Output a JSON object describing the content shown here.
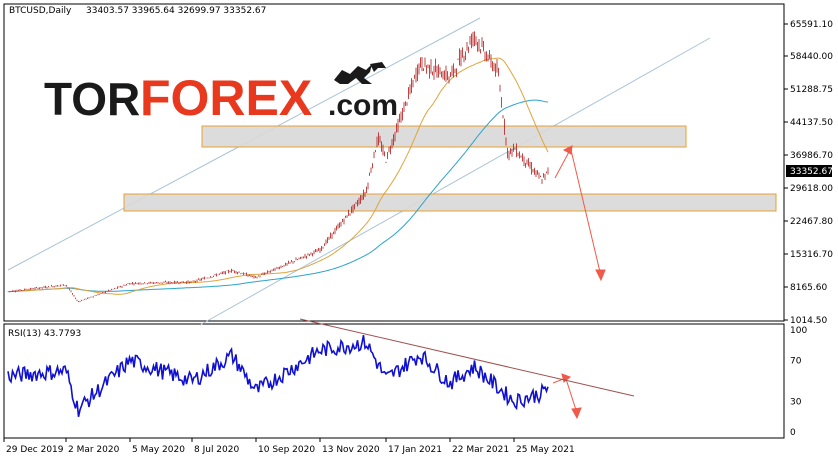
{
  "header": {
    "symbol": "BTCUSD,Daily",
    "ohlc": "33403.57 33965.64 32699.97 33352.67"
  },
  "logo": {
    "tor": "TOR",
    "forex": "FOREX",
    "com": ".com",
    "colors": {
      "tor": "#1a1a1a",
      "forex": "#e8381e",
      "com": "#1a1a1a"
    }
  },
  "rsi": {
    "label": "RSI(13) 43.7793",
    "levels": [
      "100",
      "70",
      "30",
      "0"
    ]
  },
  "price_label": "33352.67",
  "colors": {
    "candle": "#b01818",
    "ma_fast": "#e0a43c",
    "ma_slow": "#2ba3c8",
    "channel": "#a9c3d6",
    "zone_fill": "#d8d8d8",
    "zone_border": "#e8a030",
    "arrow": "#f05a4a",
    "rsi_line": "#1010d0",
    "rsi_trend": "#a05050"
  },
  "chart_data": {
    "type": "candlestick",
    "title": "BTCUSD,Daily",
    "x_ticks": [
      "29 Dec 2019",
      "2 Mar 2020",
      "5 May 2020",
      "8 Jul 2020",
      "10 Sep 2020",
      "13 Nov 2020",
      "17 Jan 2021",
      "22 Mar 2021",
      "25 May 2021"
    ],
    "y_ticks": [
      "65591.10",
      "58440.00",
      "51288.75",
      "44137.50",
      "36986.70",
      "29618.00",
      "22467.80",
      "15316.70",
      "8165.60",
      "1014.50"
    ],
    "ylim": [
      1014.5,
      69000
    ],
    "last_price": 33352.67,
    "price_path": [
      {
        "date": "29 Dec 2019",
        "close": 7200
      },
      {
        "date": "2 Mar 2020",
        "close": 8700
      },
      {
        "date": "13 Mar 2020",
        "close": 5000
      },
      {
        "date": "5 May 2020",
        "close": 9000
      },
      {
        "date": "8 Jul 2020",
        "close": 9300
      },
      {
        "date": "15 Aug 2020",
        "close": 11800
      },
      {
        "date": "10 Sep 2020",
        "close": 10300
      },
      {
        "date": "13 Nov 2020",
        "close": 16300
      },
      {
        "date": "30 Dec 2020",
        "close": 28900
      },
      {
        "date": "8 Jan 2021",
        "close": 40800
      },
      {
        "date": "17 Jan 2021",
        "close": 36000
      },
      {
        "date": "21 Feb 2021",
        "close": 57000
      },
      {
        "date": "22 Mar 2021",
        "close": 54000
      },
      {
        "date": "14 Apr 2021",
        "close": 63000
      },
      {
        "date": "10 May 2021",
        "close": 55000
      },
      {
        "date": "19 May 2021",
        "close": 37000
      },
      {
        "date": "25 May 2021",
        "close": 38500
      },
      {
        "date": "22 Jun 2021",
        "close": 31500
      },
      {
        "date": "27 Jun 2021",
        "close": 33352.67
      }
    ],
    "rsi": {
      "period": 13,
      "value": 43.7793,
      "levels": [
        100,
        70,
        30,
        0
      ],
      "path": [
        {
          "date": "29 Dec 2019",
          "v": 55
        },
        {
          "date": "2 Mar 2020",
          "v": 60
        },
        {
          "date": "13 Mar 2020",
          "v": 22
        },
        {
          "date": "5 May 2020",
          "v": 70
        },
        {
          "date": "8 Jul 2020",
          "v": 50
        },
        {
          "date": "15 Aug 2020",
          "v": 75
        },
        {
          "date": "10 Sep 2020",
          "v": 40
        },
        {
          "date": "13 Nov 2020",
          "v": 80
        },
        {
          "date": "30 Dec 2020",
          "v": 88
        },
        {
          "date": "17 Jan 2021",
          "v": 52
        },
        {
          "date": "21 Feb 2021",
          "v": 76
        },
        {
          "date": "22 Mar 2021",
          "v": 48
        },
        {
          "date": "14 Apr 2021",
          "v": 64
        },
        {
          "date": "25 May 2021",
          "v": 30
        },
        {
          "date": "22 Jun 2021",
          "v": 38
        },
        {
          "date": "27 Jun 2021",
          "v": 43.78
        }
      ]
    }
  }
}
